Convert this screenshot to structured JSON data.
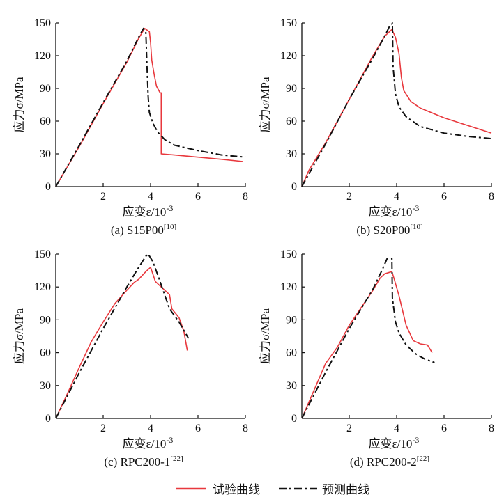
{
  "legend": {
    "test_label": "试验曲线",
    "pred_label": "预测曲线"
  },
  "colors": {
    "test": "#e8383d",
    "pred": "#111111",
    "axis": "#111111"
  },
  "chart_data": [
    {
      "type": "line",
      "caption": "(a) S15P00",
      "caption_ref": "[10]",
      "xlabel": {
        "main": "应变ε/10",
        "exp": "-3"
      },
      "ylabel": "应力σ/MPa",
      "xlim": [
        0,
        8
      ],
      "ylim": [
        0,
        150
      ],
      "xticks": [
        2,
        4,
        6,
        8
      ],
      "yticks": [
        30,
        60,
        90,
        120,
        150
      ],
      "origin_label": "0",
      "grid": false,
      "series": [
        {
          "name": "试验曲线",
          "style": "solid",
          "points": [
            [
              0,
              0
            ],
            [
              1,
              37
            ],
            [
              2,
              76
            ],
            [
              3,
              114
            ],
            [
              3.5,
              136
            ],
            [
              3.75,
              145
            ],
            [
              3.95,
              142
            ],
            [
              4.0,
              132
            ],
            [
              4.05,
              116
            ],
            [
              4.15,
              103
            ],
            [
              4.25,
              92
            ],
            [
              4.4,
              86
            ],
            [
              4.45,
              86
            ],
            [
              4.45,
              30
            ],
            [
              5,
              29
            ],
            [
              6,
              27
            ],
            [
              7,
              25
            ],
            [
              7.9,
              23
            ]
          ]
        },
        {
          "name": "预测曲线",
          "style": "dashdot",
          "points": [
            [
              0,
              0
            ],
            [
              1,
              38
            ],
            [
              2,
              77
            ],
            [
              3,
              115
            ],
            [
              3.5,
              137
            ],
            [
              3.7,
              145
            ],
            [
              3.8,
              142
            ],
            [
              3.85,
              110
            ],
            [
              3.9,
              82
            ],
            [
              3.95,
              68
            ],
            [
              4.1,
              58
            ],
            [
              4.3,
              50
            ],
            [
              4.6,
              43
            ],
            [
              5,
              38
            ],
            [
              6,
              33
            ],
            [
              7,
              29
            ],
            [
              8,
              27
            ]
          ]
        }
      ]
    },
    {
      "type": "line",
      "caption": "(b) S20P00",
      "caption_ref": "[10]",
      "xlabel": {
        "main": "应变ε/10",
        "exp": "-3"
      },
      "ylabel": "应力σ/MPa",
      "xlim": [
        0,
        8
      ],
      "ylim": [
        0,
        150
      ],
      "xticks": [
        2,
        4,
        6,
        8
      ],
      "yticks": [
        30,
        60,
        90,
        120,
        150
      ],
      "origin_label": "0",
      "grid": false,
      "series": [
        {
          "name": "试验曲线",
          "style": "solid",
          "points": [
            [
              0,
              0
            ],
            [
              0.3,
              15
            ],
            [
              1,
              40
            ],
            [
              2,
              80
            ],
            [
              3,
              120
            ],
            [
              3.5,
              138
            ],
            [
              3.8,
              144
            ],
            [
              3.95,
              137
            ],
            [
              4.1,
              122
            ],
            [
              4.2,
              100
            ],
            [
              4.3,
              88
            ],
            [
              4.6,
              78
            ],
            [
              5,
              72
            ],
            [
              6,
              63
            ],
            [
              7,
              56
            ],
            [
              8,
              49
            ]
          ]
        },
        {
          "name": "预测曲线",
          "style": "dashdot",
          "points": [
            [
              0,
              0
            ],
            [
              1,
              39
            ],
            [
              2,
              80
            ],
            [
              3,
              118
            ],
            [
              3.5,
              138
            ],
            [
              3.7,
              147
            ],
            [
              3.8,
              149
            ],
            [
              3.82,
              150
            ],
            [
              3.85,
              110
            ],
            [
              3.95,
              85
            ],
            [
              4.1,
              73
            ],
            [
              4.4,
              64
            ],
            [
              5,
              55
            ],
            [
              6,
              49
            ],
            [
              7,
              46
            ],
            [
              8,
              44
            ]
          ]
        }
      ]
    },
    {
      "type": "line",
      "caption": "(c) RPC200-1",
      "caption_ref": "[22]",
      "xlabel": {
        "main": "应变ε/10",
        "exp": "-3"
      },
      "ylabel": "应力σ/MPa",
      "xlim": [
        0,
        8
      ],
      "ylim": [
        0,
        150
      ],
      "xticks": [
        2,
        4,
        6,
        8
      ],
      "yticks": [
        30,
        60,
        90,
        120,
        150
      ],
      "origin_label": "0",
      "grid": false,
      "series": [
        {
          "name": "试验曲线",
          "style": "solid",
          "points": [
            [
              0,
              0
            ],
            [
              0.5,
              23
            ],
            [
              1,
              47
            ],
            [
              1.5,
              70
            ],
            [
              2,
              88
            ],
            [
              2.5,
              105
            ],
            [
              3,
              117
            ],
            [
              3.3,
              124
            ],
            [
              3.5,
              127
            ],
            [
              3.8,
              134
            ],
            [
              4.0,
              138
            ],
            [
              4.2,
              125
            ],
            [
              4.5,
              119
            ],
            [
              4.8,
              113
            ],
            [
              4.9,
              100
            ],
            [
              5.2,
              92
            ],
            [
              5.4,
              80
            ],
            [
              5.55,
              62
            ]
          ]
        },
        {
          "name": "预测曲线",
          "style": "dashdot",
          "points": [
            [
              0,
              0
            ],
            [
              1,
              42
            ],
            [
              2,
              82
            ],
            [
              3,
              120
            ],
            [
              3.5,
              138
            ],
            [
              3.8,
              148
            ],
            [
              3.9,
              150
            ],
            [
              4.1,
              143
            ],
            [
              4.4,
              125
            ],
            [
              4.8,
              100
            ],
            [
              5.2,
              88
            ],
            [
              5.6,
              73
            ]
          ]
        }
      ]
    },
    {
      "type": "line",
      "caption": "(d) RPC200-2",
      "caption_ref": "[22]",
      "xlabel": {
        "main": "应变ε/10",
        "exp": "-3"
      },
      "ylabel": "应力σ/MPa",
      "xlim": [
        0,
        8
      ],
      "ylim": [
        0,
        150
      ],
      "xticks": [
        2,
        4,
        6,
        8
      ],
      "yticks": [
        30,
        60,
        90,
        120,
        150
      ],
      "origin_label": "0",
      "grid": false,
      "series": [
        {
          "name": "试验曲线",
          "style": "solid",
          "points": [
            [
              0,
              0
            ],
            [
              0.5,
              25
            ],
            [
              1,
              50
            ],
            [
              1.5,
              65
            ],
            [
              2,
              85
            ],
            [
              2.5,
              101
            ],
            [
              3,
              117
            ],
            [
              3.3,
              128
            ],
            [
              3.5,
              132
            ],
            [
              3.8,
              134
            ],
            [
              3.9,
              127
            ],
            [
              4.1,
              112
            ],
            [
              4.4,
              85
            ],
            [
              4.7,
              71
            ],
            [
              5,
              68
            ],
            [
              5.3,
              67
            ],
            [
              5.5,
              60
            ]
          ]
        },
        {
          "name": "预测曲线",
          "style": "dashdot",
          "points": [
            [
              0,
              0
            ],
            [
              1,
              42
            ],
            [
              2,
              82
            ],
            [
              3,
              118
            ],
            [
              3.4,
              136
            ],
            [
              3.6,
              146
            ],
            [
              3.8,
              146
            ],
            [
              3.82,
              110
            ],
            [
              3.95,
              88
            ],
            [
              4.1,
              78
            ],
            [
              4.4,
              67
            ],
            [
              4.8,
              59
            ],
            [
              5.2,
              54
            ],
            [
              5.6,
              51
            ]
          ]
        }
      ]
    }
  ]
}
